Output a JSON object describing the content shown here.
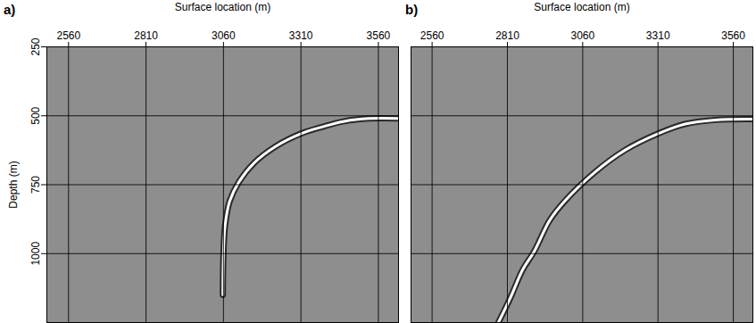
{
  "chart_data": [
    {
      "type": "line",
      "panel_label": "a)",
      "x_label": "Surface location (m)",
      "y_label": "Depth (m)",
      "xlim": [
        2490,
        3625
      ],
      "ylim": [
        250,
        1250
      ],
      "xticks": [
        2560,
        2810,
        3060,
        3310,
        3560
      ],
      "yticks": [
        250,
        500,
        750,
        1000
      ],
      "grid": true,
      "tick_labels": true,
      "series": [
        {
          "color": "#ffffff",
          "x": [
            3625,
            3530,
            3450,
            3380,
            3310,
            3230,
            3160,
            3110,
            3080,
            3065,
            3060,
            3058
          ],
          "values": [
            510,
            510,
            520,
            540,
            565,
            610,
            670,
            740,
            810,
            900,
            1000,
            1150
          ]
        }
      ]
    },
    {
      "type": "line",
      "panel_label": "b)",
      "x_label": "Surface location (m)",
      "xlim": [
        2490,
        3625
      ],
      "ylim": [
        250,
        1250
      ],
      "xticks": [
        2560,
        2810,
        3060,
        3310,
        3560
      ],
      "yticks": [
        250,
        500,
        750,
        1000
      ],
      "grid": true,
      "tick_labels": "x",
      "series": [
        {
          "color": "#ffffff",
          "x": [
            3625,
            3500,
            3400,
            3310,
            3200,
            3100,
            3000,
            2950,
            2900,
            2860,
            2820,
            2780
          ],
          "values": [
            512,
            515,
            530,
            565,
            625,
            705,
            810,
            880,
            990,
            1060,
            1160,
            1250
          ]
        }
      ]
    }
  ]
}
